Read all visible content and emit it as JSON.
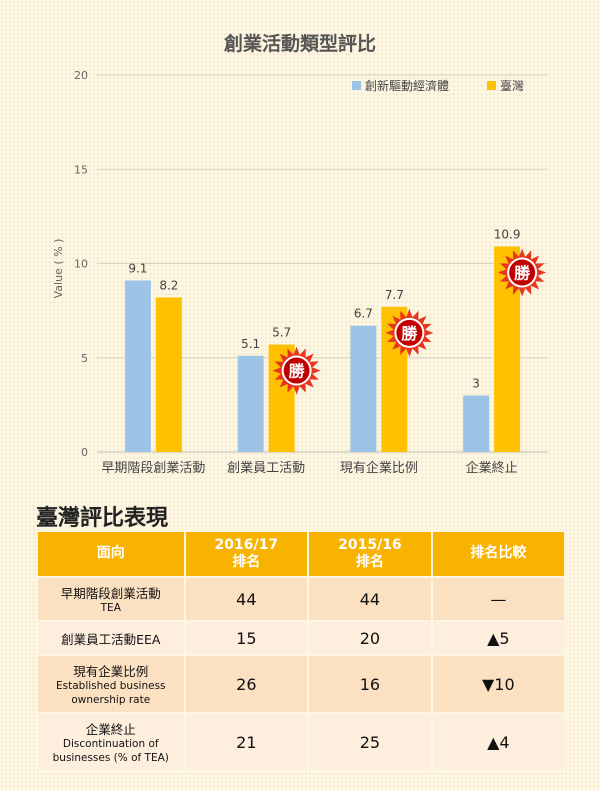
{
  "chart_data": {
    "type": "bar",
    "title": "創業活動類型評比",
    "ylabel": "Value ( % )",
    "xlabel": "",
    "ylim": [
      0,
      20
    ],
    "yticks": [
      0,
      5,
      10,
      15,
      20
    ],
    "grid": true,
    "legend_position": "top-right",
    "categories": [
      "早期階段創業活動",
      "創業員工活動",
      "現有企業比例",
      "企業終止"
    ],
    "series": [
      {
        "name": "創新驅動經濟體",
        "values": [
          9.1,
          5.1,
          6.7,
          3
        ],
        "labels": [
          "9.1",
          "5.1",
          "6.7",
          "3"
        ],
        "color": "#9dc3e6"
      },
      {
        "name": "臺灣",
        "values": [
          8.2,
          5.7,
          7.7,
          10.9
        ],
        "labels": [
          "8.2",
          "5.7",
          "7.7",
          "10.9"
        ],
        "color": "#ffc000"
      }
    ],
    "win_badges": {
      "text": "勝",
      "categories": [
        1,
        2,
        3
      ],
      "color": "#c00000",
      "burst_color": "#e8351f"
    }
  },
  "table": {
    "title": "臺灣評比表現",
    "headers": [
      {
        "line1": "面向",
        "line2": ""
      },
      {
        "line1": "2016/17",
        "line2": "排名"
      },
      {
        "line1": "2015/16",
        "line2": "排名"
      },
      {
        "line1": "排名比較",
        "line2": ""
      }
    ],
    "rows": [
      {
        "zh": "早期階段創業活動",
        "en": "TEA",
        "y2016": "44",
        "y2015": "44",
        "compare": "—"
      },
      {
        "zh": "創業員工活動EEA",
        "en": "",
        "y2016": "15",
        "y2015": "20",
        "compare": "▲5"
      },
      {
        "zh": "現有企業比例",
        "en": "Established business ownership rate",
        "y2016": "26",
        "y2015": "16",
        "compare": "▼10"
      },
      {
        "zh": "企業終止",
        "en": "Discontinuation of businesses (% of TEA)",
        "y2016": "21",
        "y2015": "25",
        "compare": "▲4"
      }
    ],
    "colors": {
      "header": "#f7b300",
      "row_odd": "#fbe0c2",
      "row_even": "#fdeede"
    }
  }
}
